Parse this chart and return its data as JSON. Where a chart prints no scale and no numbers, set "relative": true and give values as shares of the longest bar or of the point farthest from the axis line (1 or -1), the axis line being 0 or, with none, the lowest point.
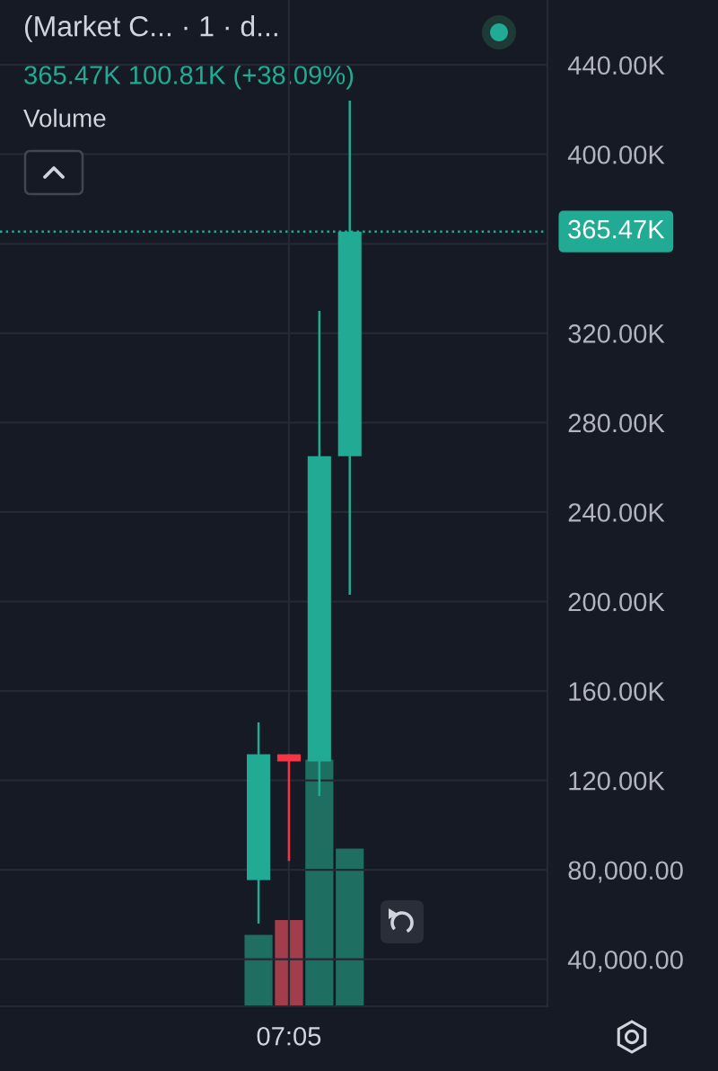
{
  "chart_data": [
    {
      "type": "candlestick",
      "title": "(Market C... · 1 · d...",
      "subtitle": "365.47K 100.81K (+38.09%)",
      "categories": [
        null,
        null,
        null,
        null,
        null,
        null,
        null,
        null,
        null,
        "07:05",
        null,
        null,
        null,
        null,
        null,
        null,
        null,
        null
      ],
      "ohlc": [
        null,
        null,
        null,
        null,
        null,
        null,
        null,
        null,
        [
          75500,
          146000,
          56000,
          131700
        ],
        [
          131700,
          131700,
          84000,
          128500
        ],
        [
          128500,
          330000,
          113000,
          265000
        ],
        [
          265000,
          424000,
          203000,
          365470
        ],
        null,
        null,
        null,
        null,
        null,
        null
      ],
      "colors": [
        null,
        null,
        null,
        null,
        null,
        null,
        null,
        null,
        "#22ab94",
        "#f23645",
        "#22ab94",
        "#22ab94",
        null,
        null,
        null,
        null,
        null,
        null
      ],
      "ylim": [
        19000,
        469000
      ],
      "yticks": [
        {
          "value": 40000,
          "label": "40,000.00"
        },
        {
          "value": 80000,
          "label": "80,000.00"
        },
        {
          "value": 120000,
          "label": "120.00K"
        },
        {
          "value": 160000,
          "label": "160.00K"
        },
        {
          "value": 200000,
          "label": "200.00K"
        },
        {
          "value": 240000,
          "label": "240.00K"
        },
        {
          "value": 280000,
          "label": "280.00K"
        },
        {
          "value": 320000,
          "label": "320.00K"
        },
        {
          "value": 360000,
          "label": null
        },
        {
          "value": 400000,
          "label": "400.00K"
        },
        {
          "value": 440000,
          "label": "440.00K"
        }
      ],
      "grid": true,
      "ref_lines": [
        {
          "axis": "y",
          "value": 365470,
          "label": "365.47K",
          "color": "#22ab94",
          "line_style": "dotted"
        }
      ]
    },
    {
      "type": "bar",
      "title": "Volume",
      "categories": [
        null,
        null,
        null,
        null,
        null,
        null,
        null,
        null,
        null,
        null,
        null,
        null,
        null,
        null,
        null,
        null,
        null,
        null
      ],
      "values": [
        null,
        null,
        null,
        null,
        null,
        null,
        null,
        null,
        0.29,
        0.35,
        1,
        0.64,
        null,
        null,
        null,
        null,
        null,
        null
      ],
      "colors": [
        null,
        null,
        null,
        null,
        null,
        null,
        null,
        null,
        "#1e6f62",
        "#a23e4b",
        "#1e6f62",
        "#1e6f62",
        null,
        null,
        null,
        null,
        null,
        null
      ],
      "relative": true
    }
  ]
}
